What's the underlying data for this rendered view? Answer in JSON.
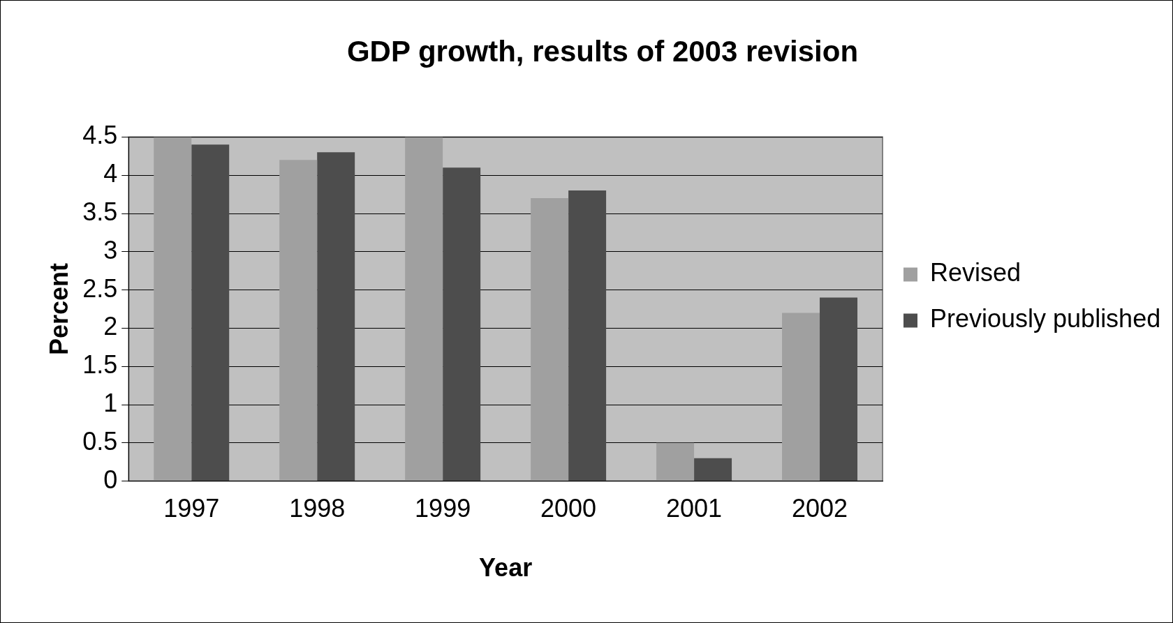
{
  "chart_data": {
    "type": "bar",
    "title": "GDP growth, results of 2003 revision",
    "xlabel": "Year",
    "ylabel": "Percent",
    "categories": [
      "1997",
      "1998",
      "1999",
      "2000",
      "2001",
      "2002"
    ],
    "series": [
      {
        "name": "Revised",
        "color": "#a0a0a0",
        "values": [
          4.5,
          4.2,
          4.5,
          3.7,
          0.5,
          2.2
        ]
      },
      {
        "name": "Previously published",
        "color": "#4d4d4d",
        "values": [
          4.4,
          4.3,
          4.1,
          3.8,
          0.3,
          2.4
        ]
      }
    ],
    "ylim": [
      0,
      4.5
    ],
    "yticks": [
      0,
      0.5,
      1,
      1.5,
      2,
      2.5,
      3,
      3.5,
      4,
      4.5
    ],
    "grid": "y",
    "legend": "right"
  }
}
